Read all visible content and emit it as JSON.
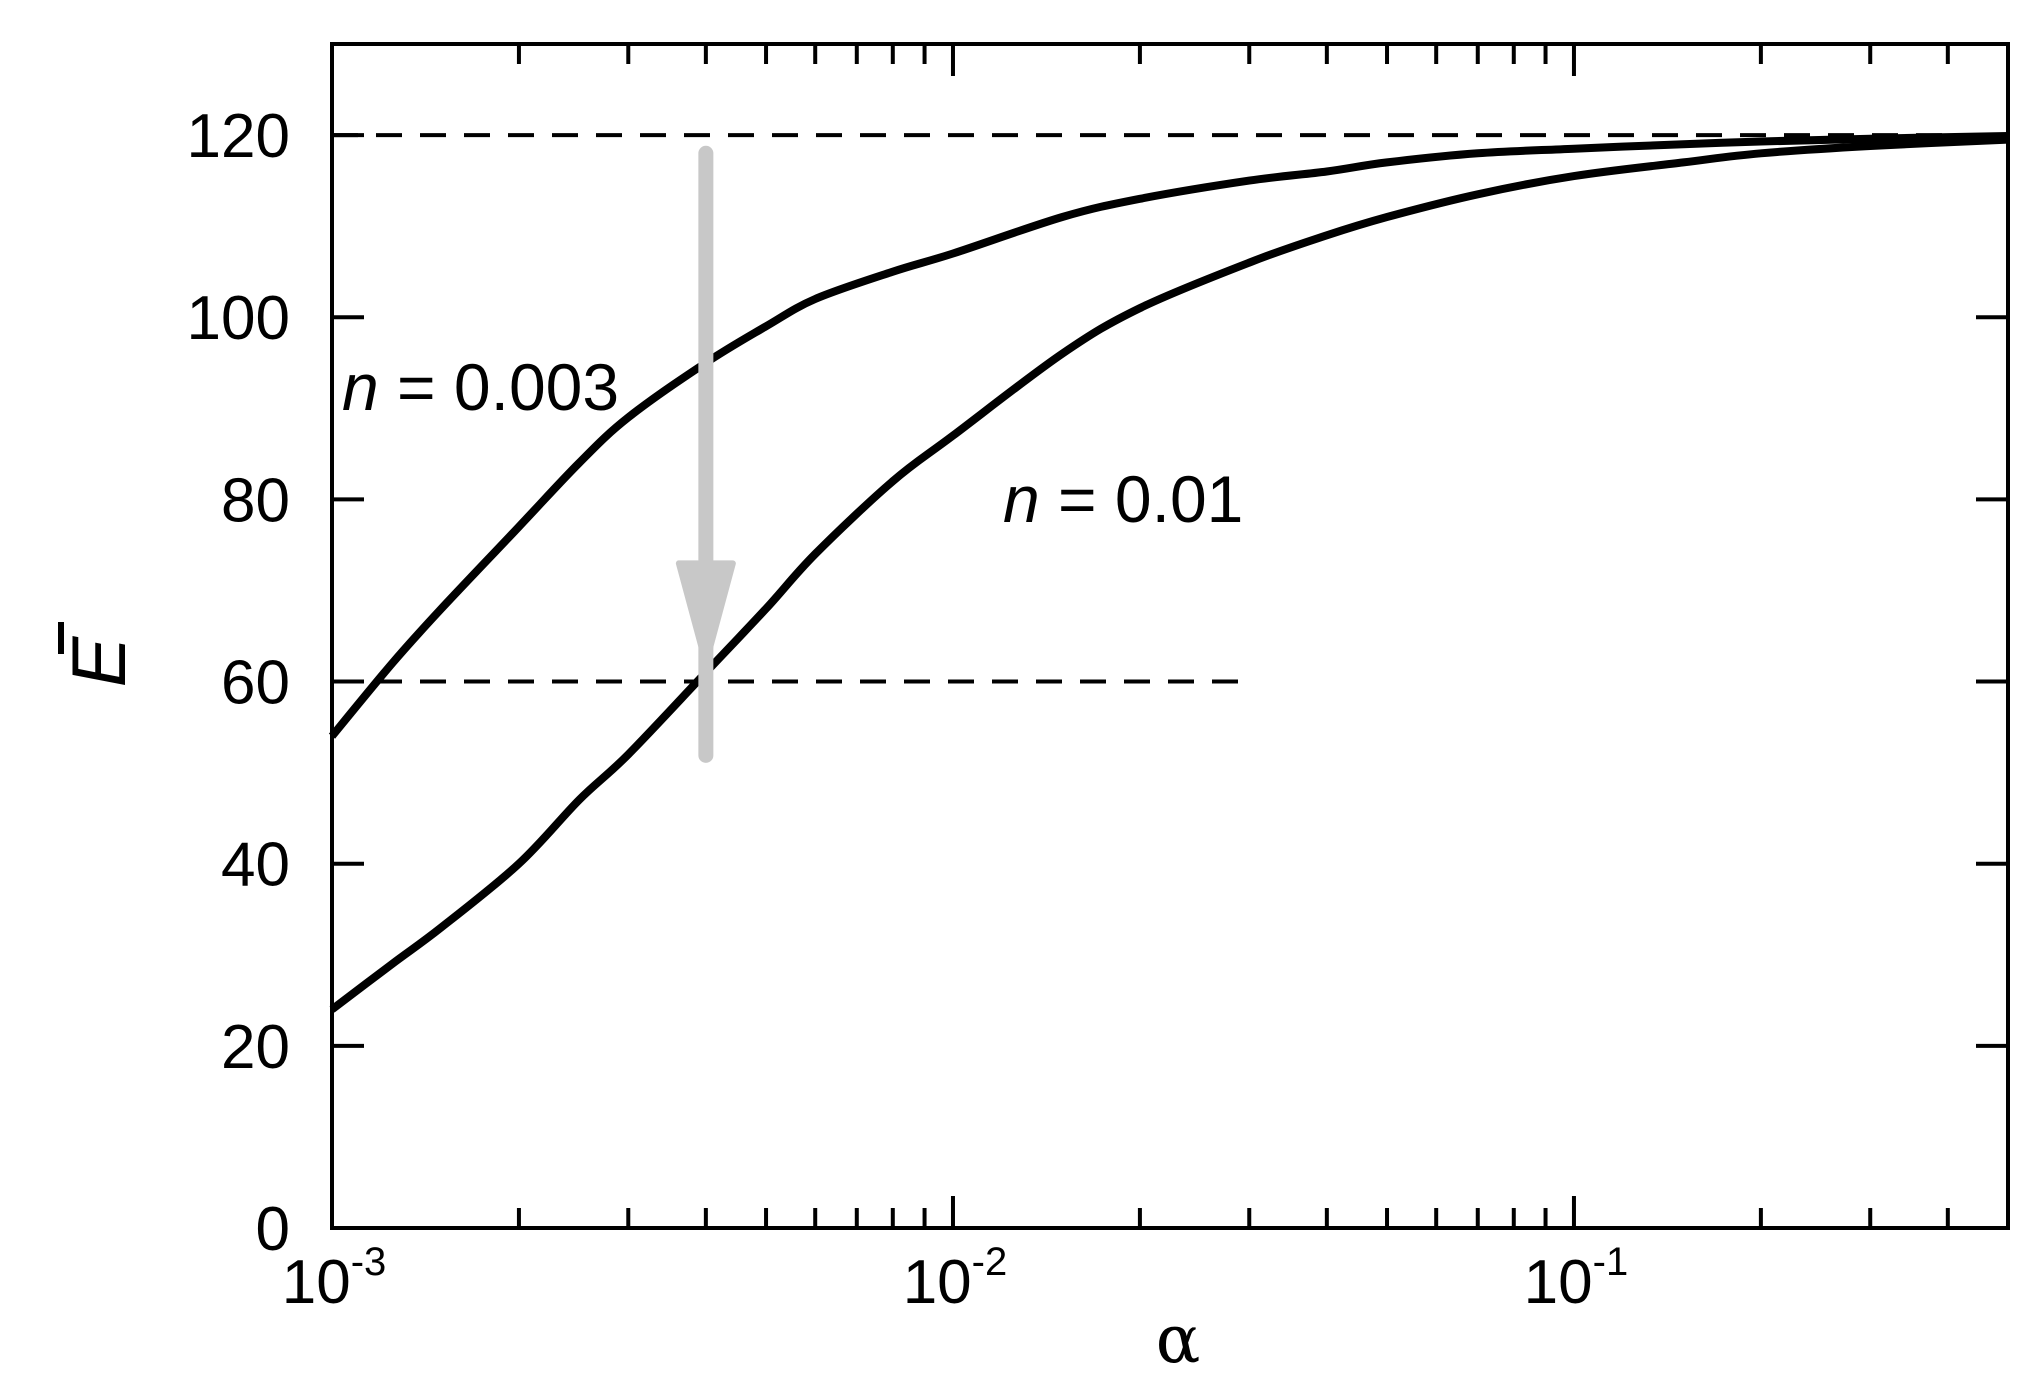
{
  "chart_data": {
    "type": "line",
    "title": "",
    "xlabel": "α",
    "ylabel": "E",
    "xscale": "log",
    "xlim": [
      0.001,
      0.5
    ],
    "ylim": [
      0,
      130
    ],
    "x_ticks": [
      {
        "mantissa": "10",
        "exponent": "-3",
        "value": 0.001
      },
      {
        "mantissa": "10",
        "exponent": "-2",
        "value": 0.01
      },
      {
        "mantissa": "10",
        "exponent": "-1",
        "value": 0.1
      }
    ],
    "y_ticks": [
      "0",
      "20",
      "40",
      "60",
      "80",
      "100",
      "120"
    ],
    "grid": false,
    "series": [
      {
        "name": "n = 0.003",
        "x": [
          0.001,
          0.00125,
          0.0015,
          0.002,
          0.0025,
          0.003,
          0.004,
          0.005,
          0.006,
          0.008,
          0.01,
          0.015,
          0.02,
          0.03,
          0.04,
          0.05,
          0.07,
          0.1,
          0.15,
          0.2,
          0.3,
          0.5
        ],
        "y": [
          54,
          62,
          68,
          77,
          84,
          89,
          95,
          99,
          102,
          105,
          107,
          111,
          113,
          115,
          116,
          117,
          118,
          118.5,
          119,
          119.3,
          119.6,
          119.9
        ]
      },
      {
        "name": "n = 0.01",
        "x": [
          0.001,
          0.00125,
          0.0015,
          0.002,
          0.0025,
          0.003,
          0.004,
          0.005,
          0.006,
          0.008,
          0.01,
          0.015,
          0.02,
          0.03,
          0.04,
          0.05,
          0.07,
          0.1,
          0.15,
          0.2,
          0.3,
          0.5
        ],
        "y": [
          24,
          29,
          33,
          40,
          47,
          52,
          61,
          68,
          74,
          82,
          87,
          96,
          101,
          106,
          109,
          111,
          113.5,
          115.5,
          117,
          118,
          118.8,
          119.5
        ]
      }
    ],
    "reference_lines": [
      {
        "y": 120,
        "x_start": 0.001,
        "x_end": 0.5,
        "style": "dashed"
      },
      {
        "y": 60,
        "x_start": 0.001,
        "x_end": 0.029,
        "style": "dashed"
      }
    ],
    "annotations": [
      {
        "var": "n",
        "rest": " = 0.003"
      },
      {
        "var": "n",
        "rest": " = 0.01"
      }
    ],
    "arrow": {
      "x": 0.004,
      "y_from": 118,
      "y_to": 62,
      "color": "#c8c8c8"
    },
    "colors": {
      "series": "#000000",
      "arrow": "#c8c8c8",
      "axes": "#000000"
    }
  }
}
